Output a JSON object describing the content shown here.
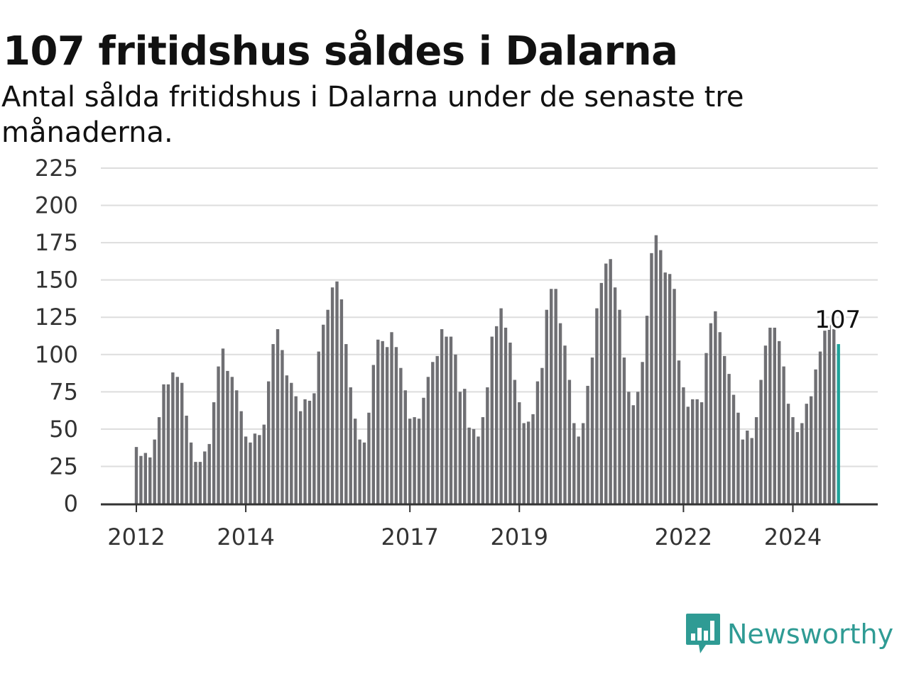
{
  "header": {
    "title": "107 fritidshus såldes i Dalarna",
    "subtitle": "Antal sålda fritidshus i Dalarna under de senaste tre månaderna."
  },
  "brand": {
    "name": "Newsworthy",
    "logo_icon": "bar-chart-speech-bubble-icon",
    "color": "#2f9b94"
  },
  "colors": {
    "bar": "#6f6f73",
    "highlight": "#1fa29a",
    "grid": "#dddddd",
    "axis": "#333333"
  },
  "chart_data": {
    "type": "bar",
    "title": "107 fritidshus såldes i Dalarna",
    "subtitle": "Antal sålda fritidshus i Dalarna under de senaste tre månaderna.",
    "xlabel": "",
    "ylabel": "",
    "ylim": [
      0,
      225
    ],
    "yticks": [
      0,
      25,
      50,
      75,
      100,
      125,
      150,
      175,
      200,
      225
    ],
    "grid": true,
    "start": "2012-01",
    "frequency": "monthly",
    "xtick_labels": [
      "2012",
      "2014",
      "2017",
      "2019",
      "2022",
      "2024"
    ],
    "xtick_index": [
      0,
      24,
      60,
      84,
      120,
      144
    ],
    "values": [
      38,
      32,
      34,
      31,
      43,
      58,
      80,
      80,
      88,
      85,
      81,
      59,
      41,
      28,
      28,
      35,
      40,
      68,
      92,
      104,
      89,
      85,
      76,
      62,
      45,
      41,
      47,
      46,
      53,
      82,
      107,
      117,
      103,
      86,
      81,
      72,
      62,
      70,
      69,
      74,
      102,
      120,
      130,
      145,
      149,
      137,
      107,
      78,
      57,
      43,
      41,
      61,
      93,
      110,
      109,
      105,
      115,
      105,
      91,
      76,
      57,
      58,
      57,
      71,
      85,
      95,
      99,
      117,
      112,
      112,
      100,
      75,
      77,
      51,
      50,
      45,
      58,
      78,
      112,
      119,
      131,
      118,
      108,
      83,
      68,
      54,
      55,
      60,
      82,
      91,
      130,
      144,
      144,
      121,
      106,
      83,
      54,
      45,
      54,
      79,
      98,
      131,
      148,
      161,
      164,
      145,
      130,
      98,
      75,
      66,
      75,
      95,
      126,
      168,
      180,
      170,
      155,
      154,
      144,
      96,
      78,
      65,
      70,
      70,
      68,
      101,
      121,
      129,
      115,
      99,
      87,
      73,
      61,
      43,
      49,
      44,
      58,
      83,
      106,
      118,
      118,
      109,
      92,
      67,
      58,
      48,
      54,
      67,
      72,
      90,
      102,
      116,
      120,
      117,
      107
    ],
    "highlight_last": true,
    "last_value_label": "107"
  }
}
